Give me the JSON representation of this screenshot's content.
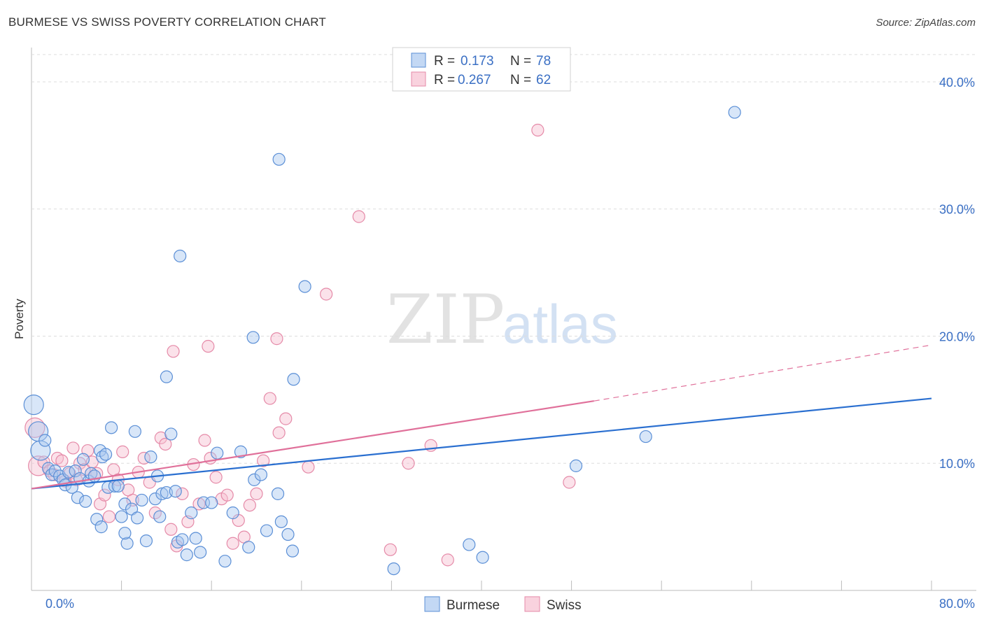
{
  "title": "BURMESE VS SWISS POVERTY CORRELATION CHART",
  "source": "Source: ZipAtlas.com",
  "watermark": {
    "part1": "ZIP",
    "part2": "atlas"
  },
  "colors": {
    "burmese_fill": "#a9c8ef",
    "burmese_stroke": "#5b8fd6",
    "burmese_line": "#2a6fd0",
    "swiss_fill": "#f6bfd0",
    "swiss_stroke": "#e58aa8",
    "swiss_line": "#e0709a",
    "tick_label": "#3a6fc4"
  },
  "legend": {
    "rows": [
      {
        "r_label": "R =",
        "r_value": "0.173",
        "n_label": "N =",
        "n_value": "78",
        "series": "Burmese"
      },
      {
        "r_label": "R =",
        "r_value": "0.267",
        "n_label": "N =",
        "n_value": "62",
        "series": "Swiss"
      }
    ]
  },
  "bottom_legend": [
    "Burmese",
    "Swiss"
  ],
  "chart_data": {
    "type": "scatter",
    "title": "BURMESE VS SWISS POVERTY CORRELATION CHART",
    "xlabel": "",
    "ylabel": "Poverty",
    "xlim": [
      0,
      80
    ],
    "ylim": [
      0,
      42
    ],
    "x_tick_labels": [
      "0.0%",
      "80.0%"
    ],
    "y_ticks": [
      10,
      20,
      30,
      40
    ],
    "y_tick_labels": [
      "10.0%",
      "20.0%",
      "30.0%",
      "40.0%"
    ],
    "grid": true,
    "legend_position": "top-center",
    "series": [
      {
        "name": "Burmese",
        "r": 0.173,
        "n": 78,
        "trend": {
          "x0": 0,
          "y0": 8.0,
          "x1": 80,
          "y1": 15.1
        },
        "points": [
          [
            0.2,
            14.6,
            "lg"
          ],
          [
            0.6,
            12.5,
            "lg"
          ],
          [
            0.8,
            11.0,
            "lg"
          ],
          [
            1.2,
            11.8
          ],
          [
            1.5,
            9.6
          ],
          [
            1.8,
            9.1
          ],
          [
            2.1,
            9.4
          ],
          [
            2.5,
            9.0
          ],
          [
            2.8,
            8.7
          ],
          [
            3.0,
            8.3
          ],
          [
            3.3,
            9.3
          ],
          [
            3.6,
            8.1
          ],
          [
            3.9,
            9.4
          ],
          [
            4.1,
            7.3
          ],
          [
            4.3,
            8.8
          ],
          [
            4.6,
            10.3
          ],
          [
            4.8,
            7.0
          ],
          [
            5.1,
            8.6
          ],
          [
            5.3,
            9.2
          ],
          [
            5.6,
            9.0
          ],
          [
            5.8,
            5.6
          ],
          [
            6.1,
            11.0
          ],
          [
            6.3,
            10.5
          ],
          [
            6.6,
            10.7
          ],
          [
            6.8,
            8.1
          ],
          [
            7.1,
            12.8
          ],
          [
            7.4,
            8.2
          ],
          [
            7.7,
            8.2
          ],
          [
            8.0,
            5.8
          ],
          [
            8.3,
            6.8
          ],
          [
            8.5,
            3.7
          ],
          [
            8.9,
            6.4
          ],
          [
            9.2,
            12.5
          ],
          [
            9.4,
            5.7
          ],
          [
            9.8,
            7.1
          ],
          [
            10.2,
            3.9
          ],
          [
            10.6,
            10.5
          ],
          [
            11.0,
            7.2
          ],
          [
            11.2,
            9.0
          ],
          [
            11.6,
            7.6
          ],
          [
            12.0,
            7.7
          ],
          [
            12.4,
            12.3
          ],
          [
            12.8,
            7.8
          ],
          [
            13.0,
            3.8
          ],
          [
            13.4,
            4.0
          ],
          [
            13.8,
            2.8
          ],
          [
            14.2,
            6.1
          ],
          [
            14.6,
            4.1
          ],
          [
            15.0,
            3.0
          ],
          [
            15.3,
            6.9
          ],
          [
            16.0,
            6.9
          ],
          [
            16.5,
            10.8
          ],
          [
            17.2,
            2.3
          ],
          [
            17.9,
            6.1
          ],
          [
            18.6,
            10.9
          ],
          [
            19.3,
            3.4
          ],
          [
            19.8,
            8.7
          ],
          [
            20.4,
            9.1
          ],
          [
            20.9,
            4.7
          ],
          [
            21.9,
            7.6
          ],
          [
            22.2,
            5.4
          ],
          [
            22.8,
            4.4
          ],
          [
            23.2,
            3.1
          ],
          [
            11.4,
            5.8
          ],
          [
            13.2,
            26.3
          ],
          [
            23.3,
            16.6
          ],
          [
            24.3,
            23.9
          ],
          [
            22.0,
            33.9
          ],
          [
            19.7,
            19.9
          ],
          [
            32.2,
            1.7
          ],
          [
            38.9,
            3.6
          ],
          [
            40.1,
            2.6
          ],
          [
            48.4,
            9.8
          ],
          [
            54.6,
            12.1
          ],
          [
            62.5,
            37.6
          ],
          [
            8.3,
            4.5
          ],
          [
            12.0,
            16.8
          ],
          [
            6.2,
            5.0
          ]
        ]
      },
      {
        "name": "Swiss",
        "r": 0.267,
        "n": 62,
        "trend": {
          "x0": 0,
          "y0": 8.0,
          "x1": 50,
          "y1": 14.9,
          "dash_to_x": 80,
          "dash_to_y": 19.3
        },
        "points": [
          [
            0.3,
            12.8,
            "lg"
          ],
          [
            0.6,
            9.8,
            "lg"
          ],
          [
            1.1,
            10.1
          ],
          [
            1.6,
            9.4
          ],
          [
            2.0,
            9.1
          ],
          [
            2.3,
            10.4
          ],
          [
            2.7,
            10.2
          ],
          [
            3.0,
            8.6
          ],
          [
            3.4,
            9.2
          ],
          [
            3.7,
            11.2
          ],
          [
            4.0,
            8.7
          ],
          [
            4.3,
            10.0
          ],
          [
            4.7,
            9.5
          ],
          [
            5.0,
            11.0
          ],
          [
            5.4,
            10.1
          ],
          [
            5.8,
            9.2
          ],
          [
            6.1,
            6.8
          ],
          [
            6.5,
            7.5
          ],
          [
            6.9,
            5.8
          ],
          [
            7.3,
            9.5
          ],
          [
            7.7,
            8.7
          ],
          [
            8.1,
            10.9
          ],
          [
            8.6,
            7.9
          ],
          [
            9.0,
            7.1
          ],
          [
            9.5,
            9.3
          ],
          [
            10.0,
            10.4
          ],
          [
            10.5,
            8.5
          ],
          [
            11.0,
            6.1
          ],
          [
            11.5,
            12.0
          ],
          [
            11.9,
            11.5
          ],
          [
            12.4,
            4.8
          ],
          [
            12.9,
            3.5
          ],
          [
            13.4,
            7.6
          ],
          [
            13.9,
            5.4
          ],
          [
            14.4,
            9.9
          ],
          [
            14.9,
            6.8
          ],
          [
            15.4,
            11.8
          ],
          [
            15.9,
            10.4
          ],
          [
            16.4,
            8.9
          ],
          [
            16.9,
            7.2
          ],
          [
            17.4,
            7.5
          ],
          [
            17.9,
            3.7
          ],
          [
            18.4,
            5.5
          ],
          [
            18.9,
            4.2
          ],
          [
            19.4,
            6.7
          ],
          [
            20.0,
            7.6
          ],
          [
            20.6,
            10.2
          ],
          [
            21.2,
            15.1
          ],
          [
            22.0,
            12.4
          ],
          [
            22.6,
            13.5
          ],
          [
            24.6,
            9.7
          ],
          [
            26.2,
            23.3
          ],
          [
            29.1,
            29.4
          ],
          [
            31.9,
            3.2
          ],
          [
            33.5,
            10.0
          ],
          [
            35.5,
            11.4
          ],
          [
            37.0,
            2.4
          ],
          [
            45.0,
            36.2
          ],
          [
            47.8,
            8.5
          ],
          [
            21.8,
            19.8
          ],
          [
            15.7,
            19.2
          ],
          [
            12.6,
            18.8
          ]
        ]
      }
    ]
  }
}
